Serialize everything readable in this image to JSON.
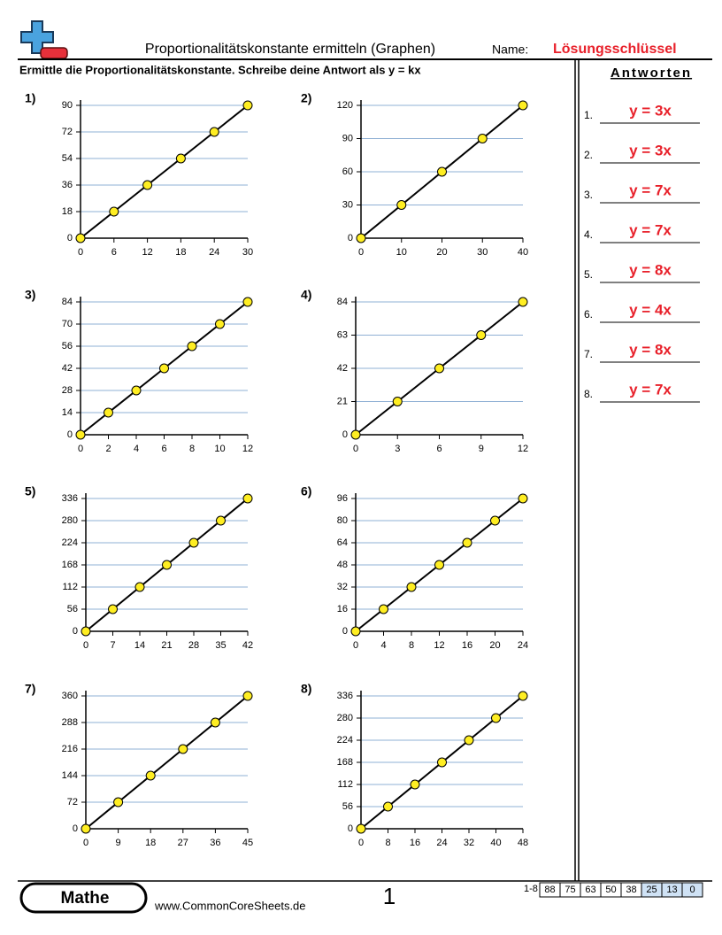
{
  "header": {
    "title": "Proportionalitätskonstante ermitteln (Graphen)",
    "name_label": "Name:",
    "name": "Lösungsschlüssel",
    "instructions": "Ermittle die Proportionalitätskonstante. Schreibe deine Antwort als y = kx"
  },
  "chart_data": [
    {
      "type": "line",
      "label": "1)",
      "x": [
        0,
        6,
        12,
        18,
        24,
        30
      ],
      "values": [
        0,
        18,
        36,
        54,
        72,
        90
      ],
      "xlim": [
        0,
        30
      ],
      "xticks": [
        0,
        6,
        12,
        18,
        24,
        30
      ],
      "ylim": [
        0,
        90
      ],
      "yticks": [
        0,
        18,
        36,
        54,
        72,
        90
      ],
      "grid": true,
      "color": "#ffee22"
    },
    {
      "type": "line",
      "label": "2)",
      "x": [
        0,
        10,
        20,
        30,
        40
      ],
      "values": [
        0,
        30,
        60,
        90,
        120
      ],
      "xlim": [
        0,
        40
      ],
      "xticks": [
        0,
        10,
        20,
        30,
        40
      ],
      "ylim": [
        0,
        120
      ],
      "yticks": [
        0,
        30,
        60,
        90,
        120
      ],
      "grid": true,
      "color": "#ffee22"
    },
    {
      "type": "line",
      "label": "3)",
      "x": [
        0,
        2,
        4,
        6,
        8,
        10,
        12
      ],
      "values": [
        0,
        14,
        28,
        42,
        56,
        70,
        84
      ],
      "xlim": [
        0,
        12
      ],
      "xticks": [
        0,
        2,
        4,
        6,
        8,
        10,
        12
      ],
      "ylim": [
        0,
        84
      ],
      "yticks": [
        0,
        14,
        28,
        42,
        56,
        70,
        84
      ],
      "grid": true,
      "color": "#ffee22"
    },
    {
      "type": "line",
      "label": "4)",
      "x": [
        0,
        3,
        6,
        9,
        12
      ],
      "values": [
        0,
        21,
        42,
        63,
        84
      ],
      "xlim": [
        0,
        12
      ],
      "xticks": [
        0,
        3,
        6,
        9,
        12
      ],
      "ylim": [
        0,
        84
      ],
      "yticks": [
        0,
        21,
        42,
        63,
        84
      ],
      "grid": true,
      "color": "#ffee22"
    },
    {
      "type": "line",
      "label": "5)",
      "x": [
        0,
        7,
        14,
        21,
        28,
        35,
        42
      ],
      "values": [
        0,
        56,
        112,
        168,
        224,
        280,
        336
      ],
      "xlim": [
        0,
        42
      ],
      "xticks": [
        0,
        7,
        14,
        21,
        28,
        35,
        42
      ],
      "ylim": [
        0,
        336
      ],
      "yticks": [
        0,
        56,
        112,
        168,
        224,
        280,
        336
      ],
      "grid": true,
      "color": "#ffee22"
    },
    {
      "type": "line",
      "label": "6)",
      "x": [
        0,
        4,
        8,
        12,
        16,
        20,
        24
      ],
      "values": [
        0,
        16,
        32,
        48,
        64,
        80,
        96
      ],
      "xlim": [
        0,
        24
      ],
      "xticks": [
        0,
        4,
        8,
        12,
        16,
        20,
        24
      ],
      "ylim": [
        0,
        96
      ],
      "yticks": [
        0,
        16,
        32,
        48,
        64,
        80,
        96
      ],
      "grid": true,
      "color": "#ffee22"
    },
    {
      "type": "line",
      "label": "7)",
      "x": [
        0,
        9,
        18,
        27,
        36,
        45
      ],
      "values": [
        0,
        72,
        144,
        216,
        288,
        360
      ],
      "xlim": [
        0,
        45
      ],
      "xticks": [
        0,
        9,
        18,
        27,
        36,
        45
      ],
      "ylim": [
        0,
        360
      ],
      "yticks": [
        0,
        72,
        144,
        216,
        288,
        360
      ],
      "grid": true,
      "color": "#ffee22"
    },
    {
      "type": "line",
      "label": "8)",
      "x": [
        0,
        8,
        16,
        24,
        32,
        40,
        48
      ],
      "values": [
        0,
        56,
        112,
        168,
        224,
        280,
        336
      ],
      "xlim": [
        0,
        48
      ],
      "xticks": [
        0,
        8,
        16,
        24,
        32,
        40,
        48
      ],
      "ylim": [
        0,
        336
      ],
      "yticks": [
        0,
        56,
        112,
        168,
        224,
        280,
        336
      ],
      "grid": true,
      "color": "#ffee22"
    }
  ],
  "answers": {
    "title": "Antworten",
    "items": [
      {
        "number": "1.",
        "answer": "y = 3x"
      },
      {
        "number": "2.",
        "answer": "y = 3x"
      },
      {
        "number": "3.",
        "answer": "y = 7x"
      },
      {
        "number": "4.",
        "answer": "y = 7x"
      },
      {
        "number": "5.",
        "answer": "y = 8x"
      },
      {
        "number": "6.",
        "answer": "y = 4x"
      },
      {
        "number": "7.",
        "answer": "y = 8x"
      },
      {
        "number": "8.",
        "answer": "y = 7x"
      }
    ]
  },
  "footer": {
    "brand": "Mathe",
    "url": "www.CommonCoreSheets.de",
    "page": "1",
    "score_label": "1-8",
    "scores": [
      88,
      75,
      63,
      50,
      38,
      25,
      13,
      0
    ]
  }
}
